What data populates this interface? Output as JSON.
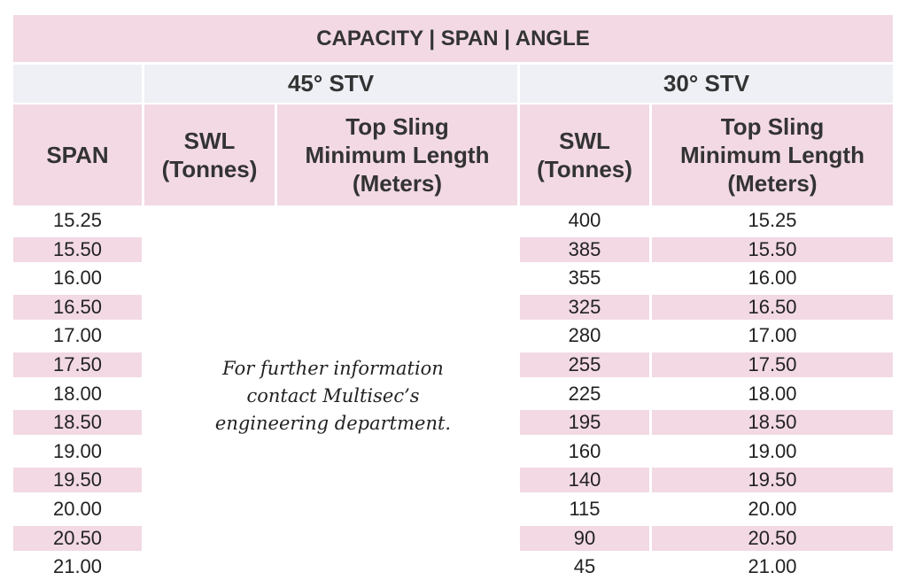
{
  "table": {
    "title": "CAPACITY | SPAN | ANGLE",
    "groups": [
      "45° STV",
      "30° STV"
    ],
    "headers": {
      "span": "SPAN",
      "swl_45": [
        "SWL",
        "(Tonnes)"
      ],
      "sling_45": [
        "Top Sling",
        "Minimum Length",
        "(Meters)"
      ],
      "swl_30": [
        "SWL",
        "(Tonnes)"
      ],
      "sling_30": [
        "Top Sling",
        "Minimum Length",
        "(Meters)"
      ]
    },
    "rows": [
      {
        "span": "15.25",
        "swl": "400",
        "sling": "15.25"
      },
      {
        "span": "15.50",
        "swl": "385",
        "sling": "15.50"
      },
      {
        "span": "16.00",
        "swl": "355",
        "sling": "16.00"
      },
      {
        "span": "16.50",
        "swl": "325",
        "sling": "16.50"
      },
      {
        "span": "17.00",
        "swl": "280",
        "sling": "17.00"
      },
      {
        "span": "17.50",
        "swl": "255",
        "sling": "17.50"
      },
      {
        "span": "18.00",
        "swl": "225",
        "sling": "18.00"
      },
      {
        "span": "18.50",
        "swl": "195",
        "sling": "18.50"
      },
      {
        "span": "19.00",
        "swl": "160",
        "sling": "19.00"
      },
      {
        "span": "19.50",
        "swl": "140",
        "sling": "19.50"
      },
      {
        "span": "20.00",
        "swl": "115",
        "sling": "20.00"
      },
      {
        "span": "20.50",
        "swl": "90",
        "sling": "20.50"
      },
      {
        "span": "21.00",
        "swl": "45",
        "sling": "21.00"
      }
    ],
    "note_lines": [
      "For further information",
      "contact Multisec’s",
      "engineering department."
    ]
  },
  "colors": {
    "pink": "#f2d9e4",
    "grey": "#eef0f5"
  }
}
